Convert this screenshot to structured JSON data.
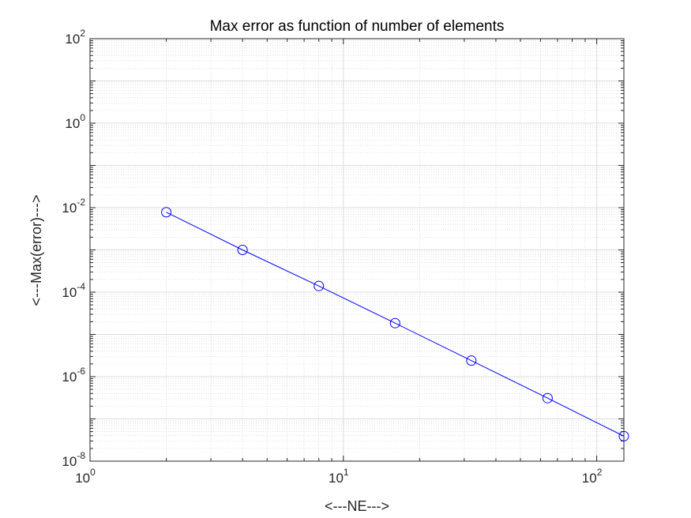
{
  "chart_data": {
    "type": "line",
    "title": "Max error as function of number of elements",
    "xlabel": "<---NE--->",
    "ylabel": "<---Max(error)--->",
    "xscale": "log",
    "yscale": "log",
    "xlim": [
      1,
      128
    ],
    "ylim": [
      1e-08,
      100
    ],
    "grid": true,
    "minor_grid": true,
    "x_ticks": [
      {
        "base": "10",
        "exp": "0",
        "value": 1
      },
      {
        "base": "10",
        "exp": "1",
        "value": 10
      },
      {
        "base": "10",
        "exp": "2",
        "value": 100
      }
    ],
    "y_ticks": [
      {
        "base": "10",
        "exp": "-8",
        "value": 1e-08
      },
      {
        "base": "10",
        "exp": "-6",
        "value": 1e-06
      },
      {
        "base": "10",
        "exp": "-4",
        "value": 0.0001
      },
      {
        "base": "10",
        "exp": "-2",
        "value": 0.01
      },
      {
        "base": "10",
        "exp": "0",
        "value": 1
      },
      {
        "base": "10",
        "exp": "2",
        "value": 100
      }
    ],
    "series": [
      {
        "color": "#0000ff",
        "marker": "circle",
        "x": [
          2,
          4,
          8,
          16,
          32,
          64,
          128
        ],
        "y": [
          0.0078,
          0.001,
          0.00014,
          1.85e-05,
          2.4e-06,
          3.1e-07,
          3.9e-08
        ]
      }
    ]
  }
}
